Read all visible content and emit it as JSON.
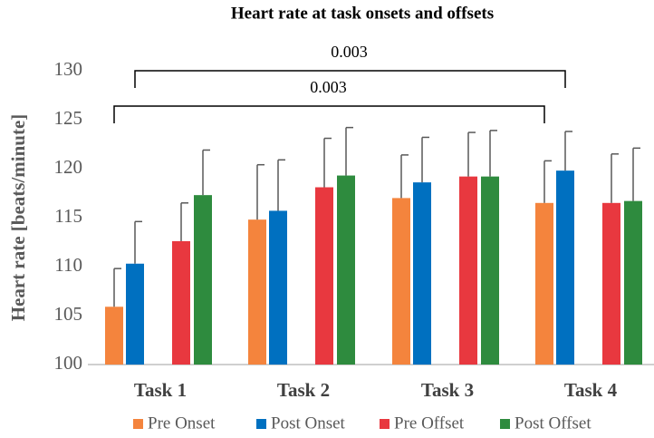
{
  "chart_data": {
    "type": "bar",
    "title": "Heart rate at task onsets and offsets",
    "y_label": "Heart rate [beats/minute]",
    "categories": [
      "Task 1",
      "Task 2",
      "Task 3",
      "Task 4"
    ],
    "series": [
      {
        "name": "Pre Onset",
        "color": "#f4843d",
        "values": [
          105.9,
          114.8,
          117.0,
          116.5
        ],
        "errors": [
          3.9,
          5.6,
          4.4,
          4.3
        ]
      },
      {
        "name": "Post Onset",
        "color": "#0070c0",
        "values": [
          110.3,
          115.7,
          118.6,
          119.8
        ],
        "errors": [
          4.3,
          5.2,
          4.6,
          4.0
        ]
      },
      {
        "name": "Pre Offset",
        "color": "#e8383f",
        "values": [
          112.6,
          118.1,
          119.2,
          116.5
        ],
        "errors": [
          3.9,
          5.0,
          4.5,
          5.0
        ]
      },
      {
        "name": "Post Offset",
        "color": "#2e8b3e",
        "values": [
          117.3,
          119.3,
          119.2,
          116.7
        ],
        "errors": [
          4.6,
          4.9,
          4.7,
          5.4
        ]
      }
    ],
    "annotations": [
      "0.003",
      "0.003"
    ],
    "ylim": [
      100,
      130
    ],
    "yticks": [
      100,
      105,
      110,
      115,
      120,
      125,
      130
    ],
    "grid": false,
    "legend": "bottom"
  }
}
